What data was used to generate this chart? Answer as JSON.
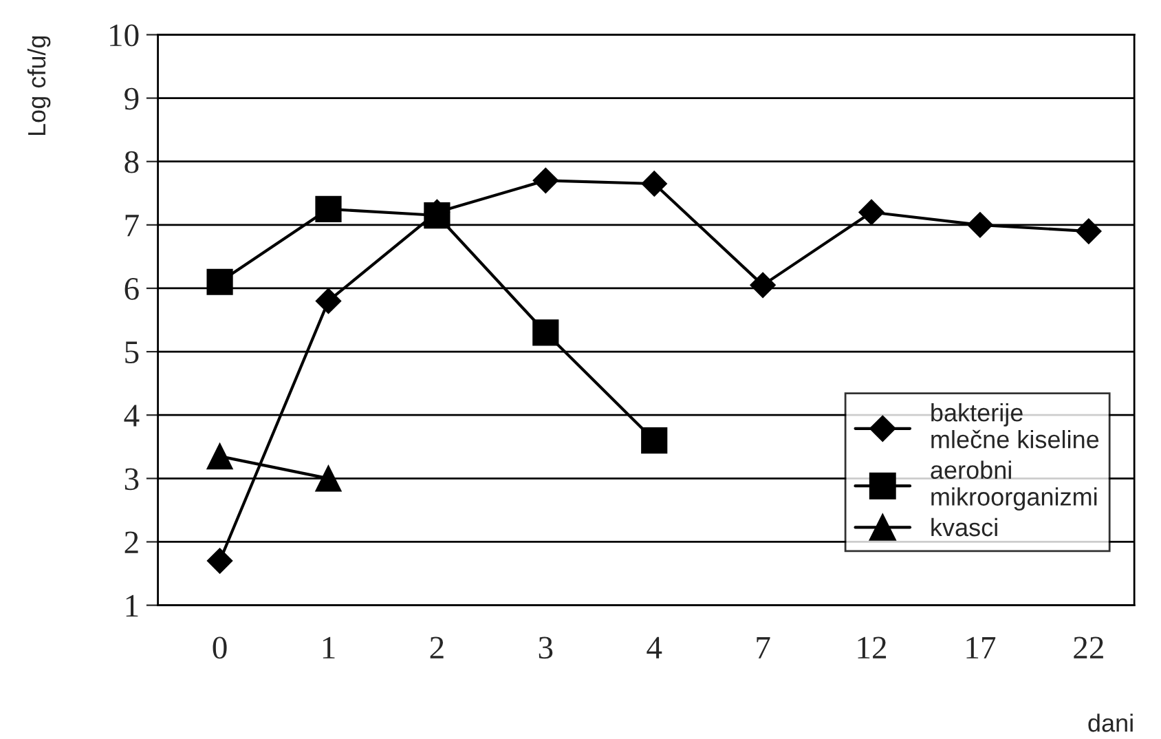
{
  "chart_data": {
    "type": "line",
    "xlabel": "dani",
    "ylabel": "Log cfu/g",
    "categories": [
      "0",
      "1",
      "2",
      "3",
      "4",
      "7",
      "12",
      "17",
      "22"
    ],
    "series": [
      {
        "name": "bakterije\nmlečne kiseline",
        "color": "#000000",
        "marker": "diamond",
        "values": [
          1.7,
          5.8,
          7.2,
          7.7,
          7.65,
          6.05,
          7.2,
          7.0,
          6.9
        ]
      },
      {
        "name": "aerobni\nmikroorganizmi",
        "color": "#000000",
        "marker": "square",
        "values": [
          6.1,
          7.25,
          7.15,
          5.3,
          3.6,
          null,
          null,
          null,
          null
        ]
      },
      {
        "name": "kvasci",
        "color": "#000000",
        "marker": "triangle",
        "values": [
          3.35,
          3.0,
          null,
          null,
          null,
          null,
          null,
          null,
          null
        ]
      }
    ],
    "ylim": [
      1,
      10
    ],
    "yticks": [
      1,
      2,
      3,
      4,
      5,
      6,
      7,
      8,
      9,
      10
    ],
    "grid": "y",
    "legend": "lower right",
    "line_style": "solid"
  }
}
